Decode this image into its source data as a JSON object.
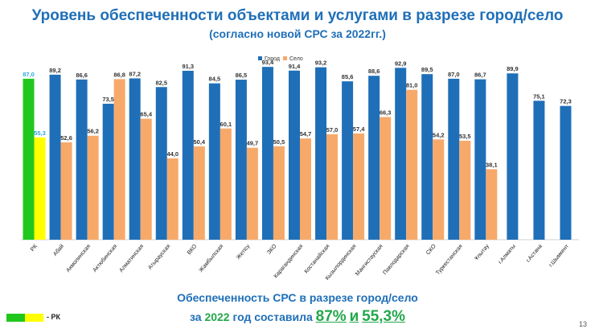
{
  "header": {
    "title": "Уровень обеспеченности объектами и услугами в разрезе город/село",
    "subtitle": "(согласно новой СРС за 2022гг.)"
  },
  "chart_data": {
    "type": "bar",
    "categories": [
      "РК",
      "Абай",
      "Акмолинская",
      "Актюбинская",
      "Алматинская",
      "Атырауская",
      "ВКО",
      "Жамбылская",
      "Жетісу",
      "ЗКО",
      "Карагандинская",
      "Костанайская",
      "Кызылординская",
      "Мангистауская",
      "Павлодарская",
      "СКО",
      "Туркестанская",
      "Ұлытау",
      "г.Алматы",
      "г.Астана",
      "г.Шымкент"
    ],
    "series": [
      {
        "name": "Город",
        "values": [
          87.0,
          89.2,
          86.6,
          73.5,
          87.2,
          82.5,
          91.3,
          84.5,
          86.5,
          93.4,
          91.4,
          93.2,
          85.6,
          88.6,
          92.9,
          89.5,
          87.0,
          86.7,
          89.9,
          75.1,
          72.3
        ]
      },
      {
        "name": "Село",
        "values": [
          55.3,
          52.6,
          56.2,
          86.8,
          65.4,
          44.0,
          50.4,
          60.1,
          49.7,
          50.5,
          54.7,
          57.0,
          57.4,
          66.3,
          81.0,
          54.2,
          53.5,
          38.1,
          null,
          null,
          null
        ]
      }
    ],
    "value_labels": {
      "city": [
        "87,0",
        "89,2",
        "86,6",
        "73,5",
        "87,2",
        "82,5",
        "91,3",
        "84,5",
        "86,5",
        "93,4",
        "91,4",
        "93,2",
        "85,6",
        "88,6",
        "92,9",
        "89,5",
        "87,0",
        "86,7",
        "89,9",
        "75,1",
        "72,3"
      ],
      "rural": [
        "55,3",
        "52,6",
        "56,2",
        "86,8",
        "65,4",
        "44,0",
        "50,4",
        "60,1",
        "49,7",
        "50,5",
        "54,7",
        "57,0",
        "57,4",
        "66,3",
        "81,0",
        "54,2",
        "53,5",
        "38,1",
        null,
        null,
        null
      ]
    },
    "ylim": [
      0,
      100
    ],
    "legend": {
      "placement": "top-center",
      "entries": [
        "Город",
        "Село"
      ]
    },
    "grid": false,
    "colors": {
      "city": "#1f6fb8",
      "rural": "#f7a96a",
      "rk_city": "#20c81e",
      "rk_rural": "#ffff00",
      "rk_label_city": "#2aa9e0",
      "rk_label_rural": "#2aa9e0"
    }
  },
  "summary": {
    "line1": "Обеспеченность СРС в разрезе город/село",
    "line2_prefix": "за",
    "line2_year": "2022",
    "line2_middle": "год составила",
    "value_city": "87%",
    "value_conj": "и",
    "value_rural": "55,3%"
  },
  "footer": {
    "rk_legend_label": "- РК",
    "page_number": "13"
  }
}
